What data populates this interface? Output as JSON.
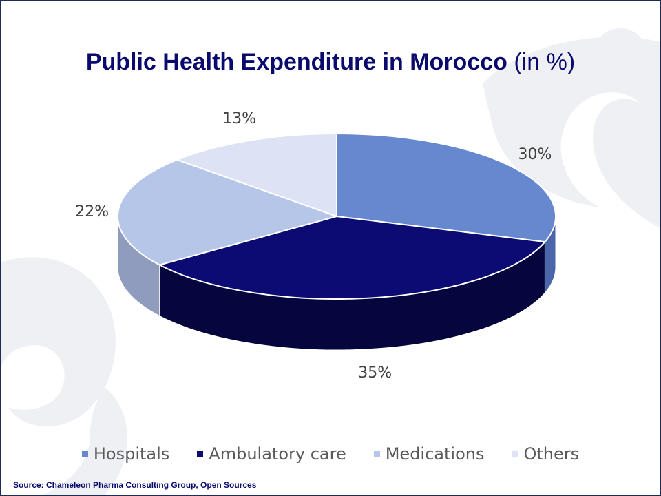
{
  "title": {
    "main": "Public Health Expenditure in Morocco",
    "suffix": "(in %)"
  },
  "chart_data": {
    "type": "pie",
    "categories": [
      "Hospitals",
      "Ambulatory care",
      "Medications",
      "Others"
    ],
    "values": [
      30,
      35,
      22,
      13
    ],
    "labels": [
      "30%",
      "35%",
      "22%",
      "13%"
    ],
    "colors": [
      "#6688cf",
      "#0b0b73",
      "#b6c6e8",
      "#dde3f4"
    ],
    "side_colors": [
      "#4a66a8",
      "#06063f",
      "#8f9cbd",
      "#b3bacb"
    ],
    "legend_position": "bottom"
  },
  "source": "Source: Chameleon Pharma Consulting Group, Open Sources"
}
